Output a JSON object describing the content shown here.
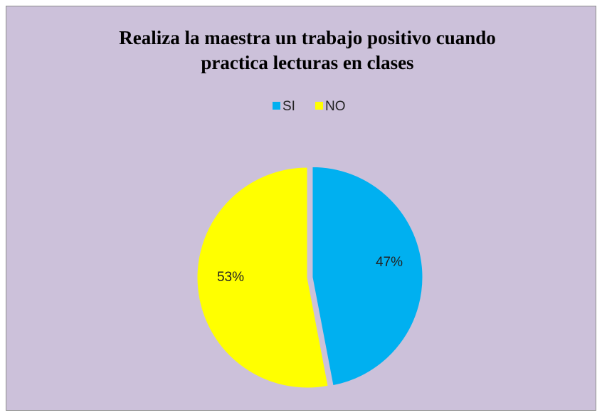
{
  "chart_data": {
    "type": "pie",
    "title": [
      "Realiza la maestra un trabajo positivo cuando",
      "practica  lecturas en clases"
    ],
    "categories": [
      "SI",
      "NO"
    ],
    "values": [
      47,
      53
    ],
    "value_labels": [
      "47%",
      "53%"
    ],
    "colors": [
      "#00b0f0",
      "#ffff00"
    ],
    "legend": "top"
  }
}
